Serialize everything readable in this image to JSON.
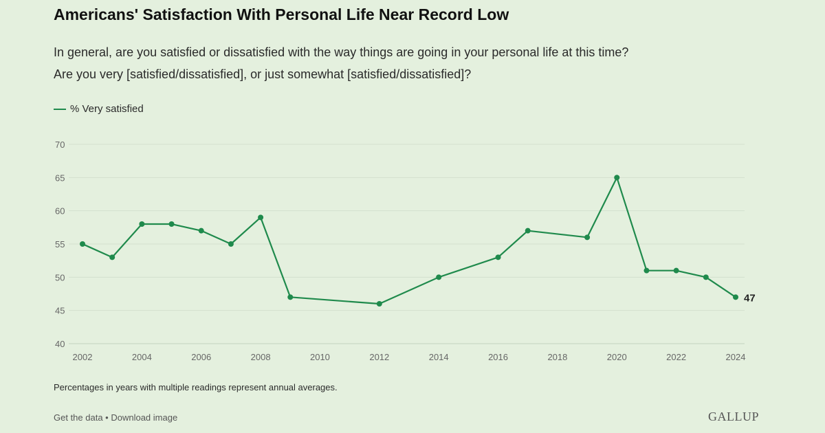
{
  "header": {
    "title": "Americans' Satisfaction With Personal Life Near Record Low",
    "subtitle_line1": "In general, are you satisfied or dissatisfied with the way things are going in your personal life at this time?",
    "subtitle_line2": "Are you very [satisfied/dissatisfied], or just somewhat [satisfied/dissatisfied]?"
  },
  "legend": {
    "label": "% Very satisfied",
    "color": "#1f8a4c"
  },
  "chart_data": {
    "type": "line",
    "title": "Americans' Satisfaction With Personal Life Near Record Low",
    "xlabel": "",
    "ylabel": "",
    "x_ticks": [
      2002,
      2004,
      2006,
      2008,
      2010,
      2012,
      2014,
      2016,
      2018,
      2020,
      2022,
      2024
    ],
    "y_ticks": [
      40,
      45,
      50,
      55,
      60,
      65,
      70
    ],
    "xlim": [
      2002,
      2024
    ],
    "ylim": [
      40,
      70
    ],
    "grid": true,
    "legend_position": "top-left",
    "series": [
      {
        "name": "% Very satisfied",
        "color": "#1f8a4c",
        "x": [
          2002,
          2003,
          2004,
          2005,
          2006,
          2007,
          2008,
          2009,
          2012,
          2014,
          2016,
          2017,
          2019,
          2020,
          2021,
          2022,
          2023,
          2024
        ],
        "y": [
          55,
          53,
          58,
          58,
          57,
          55,
          59,
          47,
          46,
          50,
          53,
          57,
          56,
          65,
          51,
          51,
          50,
          47
        ]
      }
    ],
    "annotations": [
      {
        "x": 2024,
        "y": 47,
        "text": "47"
      }
    ]
  },
  "footer": {
    "note": "Percentages in years with multiple readings represent annual averages.",
    "link_get_data": "Get the data",
    "separator": " • ",
    "link_download": "Download image",
    "brand": "GALLUP"
  }
}
